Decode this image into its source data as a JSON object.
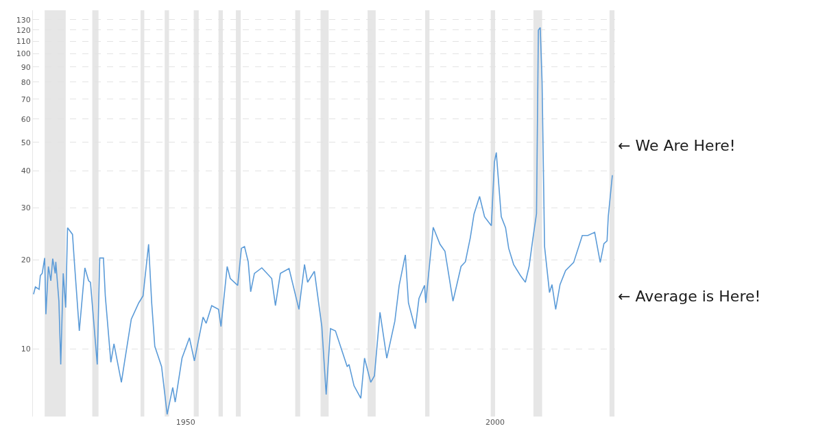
{
  "chart_data": {
    "type": "line",
    "x": [
      1925.4,
      1925.7,
      1926.3,
      1926.5,
      1926.8,
      1927.2,
      1927.4,
      1927.8,
      1928.2,
      1928.5,
      1928.9,
      1929.0,
      1929.5,
      1929.8,
      1930.2,
      1930.6,
      1930.9,
      1931.7,
      1932.0,
      1932.8,
      1933.7,
      1934.3,
      1934.6,
      1935.7,
      1936.1,
      1936.7,
      1937.0,
      1937.9,
      1938.4,
      1939.6,
      1940.1,
      1941.2,
      1942.4,
      1943.1,
      1944.0,
      1944.5,
      1945.0,
      1946.1,
      1947.0,
      1947.9,
      1948.3,
      1949.4,
      1950.6,
      1951.4,
      1952.8,
      1953.3,
      1954.2,
      1955.3,
      1955.7,
      1956.7,
      1957.2,
      1958.4,
      1959.0,
      1959.5,
      1960.1,
      1960.5,
      1961.1,
      1962.3,
      1963.9,
      1964.5,
      1965.3,
      1966.7,
      1968.3,
      1969.2,
      1969.7,
      1970.8,
      1972.0,
      1972.7,
      1973.4,
      1974.2,
      1976.1,
      1976.4,
      1977.2,
      1978.3,
      1978.9,
      1979.9,
      1980.5,
      1981.4,
      1982.5,
      1983.8,
      1984.5,
      1985.5,
      1986.0,
      1987.1,
      1987.7,
      1988.6,
      1988.8,
      1990.0,
      1991.1,
      1991.9,
      1993.2,
      1994.5,
      1995.2,
      1996.0,
      1996.6,
      1997.5,
      1998.3,
      1999.4,
      1999.9,
      2000.2,
      2001.0,
      2001.7,
      2002.2,
      2003.0,
      2004.1,
      2004.9,
      2005.5,
      2006.1,
      2006.7,
      2007.0,
      2007.3,
      2007.6,
      2008.0,
      2008.8,
      2009.2,
      2009.8,
      2010.5,
      2011.4,
      2012.7,
      2014.1,
      2015.0,
      2016.1,
      2017.0,
      2017.6,
      2018.1,
      2018.3,
      2018.96
    ],
    "series": [
      {
        "color": "#5b9bd8",
        "values": [
          15.3,
          16.2,
          15.9,
          17.7,
          18.0,
          20.3,
          13.1,
          19.0,
          17.0,
          20.2,
          18.0,
          19.7,
          14.5,
          8.85,
          18.0,
          13.8,
          25.7,
          24.4,
          19.7,
          11.5,
          18.8,
          17.0,
          16.8,
          8.85,
          20.3,
          20.3,
          15.1,
          9.0,
          10.4,
          7.7,
          9.0,
          12.6,
          14.3,
          15.1,
          22.6,
          14.3,
          10.2,
          8.7,
          6.0,
          7.4,
          6.6,
          9.3,
          10.9,
          9.1,
          12.8,
          12.2,
          14.0,
          13.6,
          11.9,
          19.0,
          17.3,
          16.4,
          21.9,
          22.2,
          19.7,
          15.6,
          18.0,
          18.8,
          17.3,
          14.0,
          18.0,
          18.7,
          13.6,
          19.3,
          16.8,
          18.3,
          11.9,
          7.0,
          11.7,
          11.5,
          8.7,
          8.85,
          7.5,
          6.8,
          9.3,
          7.7,
          8.1,
          13.3,
          9.3,
          12.4,
          16.4,
          20.8,
          14.3,
          11.7,
          14.8,
          16.4,
          14.3,
          25.8,
          22.6,
          21.4,
          14.5,
          19.0,
          19.7,
          23.8,
          28.6,
          32.8,
          28.0,
          26.1,
          42.9,
          46.2,
          28.0,
          25.7,
          21.9,
          19.3,
          17.7,
          16.8,
          19.0,
          23.5,
          28.7,
          119.9,
          122.4,
          80.0,
          22.2,
          15.5,
          16.5,
          13.6,
          16.5,
          18.4,
          19.6,
          24.2,
          24.2,
          24.8,
          19.6,
          22.7,
          23.2,
          28.1,
          38.7
        ]
      }
    ],
    "xlim": [
      1925.3,
      2019.4
    ],
    "xticks": [
      1950,
      2000
    ],
    "ylim": [
      5.9,
      140
    ],
    "yticks": [
      10,
      20,
      30,
      40,
      50,
      60,
      70,
      80,
      90,
      100,
      110,
      120,
      130
    ],
    "log": "y",
    "grid": "y",
    "legend": false,
    "marker": "none",
    "line_style": "solid",
    "bands": [
      {
        "axis": "x",
        "from": 1927.2,
        "to": 1930.6,
        "color": "#e6e6e6"
      },
      {
        "axis": "x",
        "from": 1934.9,
        "to": 1935.9,
        "color": "#e6e6e6"
      },
      {
        "axis": "x",
        "from": 1942.7,
        "to": 1943.3,
        "color": "#e6e6e6"
      },
      {
        "axis": "x",
        "from": 1946.6,
        "to": 1947.3,
        "color": "#e6e6e6"
      },
      {
        "axis": "x",
        "from": 1951.3,
        "to": 1952.1,
        "color": "#e6e6e6"
      },
      {
        "axis": "x",
        "from": 1955.3,
        "to": 1956.0,
        "color": "#e6e6e6"
      },
      {
        "axis": "x",
        "from": 1958.1,
        "to": 1958.9,
        "color": "#e6e6e6"
      },
      {
        "axis": "x",
        "from": 1967.7,
        "to": 1968.5,
        "color": "#e6e6e6"
      },
      {
        "axis": "x",
        "from": 1971.8,
        "to": 1973.1,
        "color": "#e6e6e6"
      },
      {
        "axis": "x",
        "from": 1979.4,
        "to": 1980.7,
        "color": "#e6e6e6"
      },
      {
        "axis": "x",
        "from": 1988.7,
        "to": 1989.4,
        "color": "#e6e6e6"
      },
      {
        "axis": "x",
        "from": 1999.3,
        "to": 2000.0,
        "color": "#e6e6e6"
      },
      {
        "axis": "x",
        "from": 2006.2,
        "to": 2007.6,
        "color": "#e6e6e6"
      },
      {
        "axis": "x",
        "from": 2018.5,
        "to": 2019.3,
        "color": "#e6e6e6"
      }
    ],
    "annotations": [
      {
        "text": "← We Are Here!",
        "x": 2019.4,
        "y": 48.7
      },
      {
        "text": "← Average is Here!",
        "x": 2019.4,
        "y": 15.1
      }
    ]
  }
}
